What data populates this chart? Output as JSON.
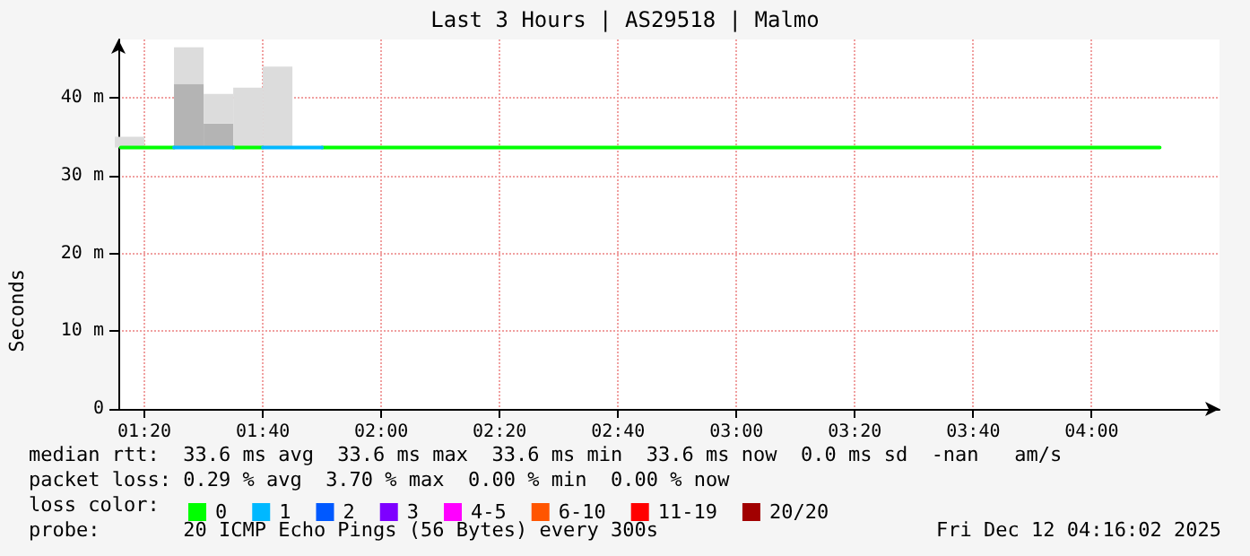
{
  "chart_data": {
    "type": "line",
    "title": "Last 3 Hours | AS29518 | Malmo",
    "ylabel": "Seconds",
    "legend_title": "loss color:",
    "legend": "bottom",
    "grid": true,
    "marker": "none",
    "line_style": "solid",
    "xlim": [
      1.26,
      4.36
    ],
    "ylim": [
      0,
      47.5
    ],
    "xticks": [
      {
        "value": 1.3333,
        "label": "01:20"
      },
      {
        "value": 1.6667,
        "label": "01:40"
      },
      {
        "value": 2,
        "label": "02:00"
      },
      {
        "value": 2.3333,
        "label": "02:20"
      },
      {
        "value": 2.6667,
        "label": "02:40"
      },
      {
        "value": 3,
        "label": "03:00"
      },
      {
        "value": 3.3333,
        "label": "03:20"
      },
      {
        "value": 3.6667,
        "label": "03:40"
      },
      {
        "value": 4,
        "label": "04:00"
      }
    ],
    "yticks": [
      0,
      {
        "value": 10,
        "label": "10 m"
      },
      {
        "value": 20,
        "label": "20 m"
      },
      {
        "value": 30,
        "label": "30 m"
      },
      {
        "value": 40,
        "label": "40 m"
      }
    ],
    "series": [
      {
        "type": "bar",
        "color": "#b4b4b4",
        "x": [
          1.4583,
          1.5417
        ],
        "base": [
          33.6,
          33.6
        ],
        "values": [
          8.2,
          3.1
        ]
      },
      {
        "type": "bar",
        "color": "#dcdcdc",
        "x": [
          1.2917,
          1.4583,
          1.5417,
          1.625,
          1.7083
        ],
        "base": [
          33.6,
          41.8,
          36.7,
          33.6,
          33.6
        ],
        "values": [
          1.4,
          4.7,
          3.8,
          7.7,
          10.4
        ]
      },
      {
        "name": "0",
        "color": "#00ff00",
        "x": [
          1.2667,
          1.4167,
          1.5,
          1.5833,
          1.6667,
          1.75,
          1.8333,
          4.1917
        ],
        "values": [
          33.6,
          33.6,
          null,
          33.6,
          33.6,
          null,
          33.6,
          33.6
        ]
      },
      {
        "name": "1",
        "color": "#00b8ff",
        "x": [
          1.4167,
          1.5833,
          1.625,
          1.6667,
          1.8333
        ],
        "values": [
          33.6,
          33.6,
          null,
          33.6,
          33.6
        ]
      },
      {
        "name": "2",
        "color": "#0059ff"
      },
      {
        "name": "3",
        "color": "#7e00ff"
      },
      {
        "name": "4-5",
        "color": "#ff00ff"
      },
      {
        "name": "6-10",
        "color": "#ff5500"
      },
      {
        "name": "11-19",
        "color": "#ff0000"
      },
      {
        "name": "20/20",
        "color": "#a10000"
      }
    ],
    "annotations": [
      "median rtt:  33.6 ms avg  33.6 ms max  33.6 ms min  33.6 ms now  0.0 ms sd  -nan   am/s",
      "packet loss: 0.29 % avg  3.70 % max  0.00 % min  0.00 % now",
      "probe:       20 ICMP Echo Pings (56 Bytes) every 300s",
      "Fri Dec 12 04:16:02 2025"
    ]
  }
}
